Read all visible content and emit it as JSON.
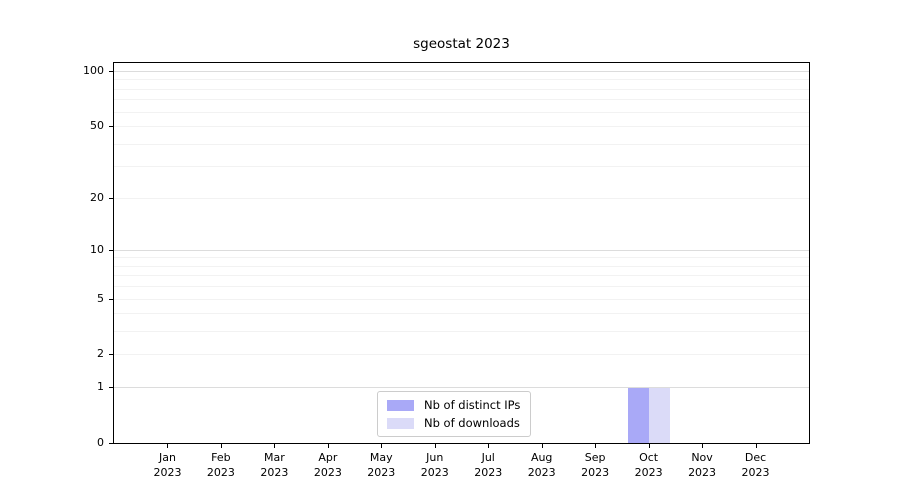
{
  "figure": {
    "title": "sgeostat 2023"
  },
  "chart_data": {
    "type": "bar",
    "title": "sgeostat 2023",
    "categories": [
      "Jan 2023",
      "Feb 2023",
      "Mar 2023",
      "Apr 2023",
      "May 2023",
      "Jun 2023",
      "Jul 2023",
      "Aug 2023",
      "Sep 2023",
      "Oct 2023",
      "Nov 2023",
      "Dec 2023"
    ],
    "category_month": [
      "Jan",
      "Feb",
      "Mar",
      "Apr",
      "May",
      "Jun",
      "Jul",
      "Aug",
      "Sep",
      "Oct",
      "Nov",
      "Dec"
    ],
    "category_year": [
      "2023",
      "2023",
      "2023",
      "2023",
      "2023",
      "2023",
      "2023",
      "2023",
      "2023",
      "2023",
      "2023",
      "2023"
    ],
    "series": [
      {
        "name": "Nb of distinct IPs",
        "color": "#a9a9f7",
        "values": [
          0,
          0,
          0,
          0,
          0,
          0,
          0,
          0,
          0,
          1,
          0,
          0
        ]
      },
      {
        "name": "Nb of downloads",
        "color": "#dbdbf8",
        "values": [
          0,
          0,
          0,
          0,
          0,
          0,
          0,
          0,
          0,
          1,
          0,
          0
        ]
      }
    ],
    "xlabel": "",
    "ylabel": "",
    "yscale": "log1p",
    "ylim": [
      0,
      110
    ],
    "yticks_labeled": [
      0,
      1,
      2,
      5,
      10,
      20,
      50,
      100
    ],
    "gridlines_major": [
      1,
      10,
      100
    ],
    "gridlines_minor": [
      2,
      3,
      4,
      5,
      6,
      7,
      8,
      9,
      20,
      30,
      40,
      50,
      60,
      70,
      80,
      90
    ],
    "grid": true,
    "legend_position": "lower center inside"
  },
  "colors": {
    "major_grid": "#dcdcdc",
    "minor_grid": "#f2f2f2",
    "axis": "#000000",
    "text": "#000000",
    "legend_border": "#cccccc",
    "background": "#ffffff"
  }
}
